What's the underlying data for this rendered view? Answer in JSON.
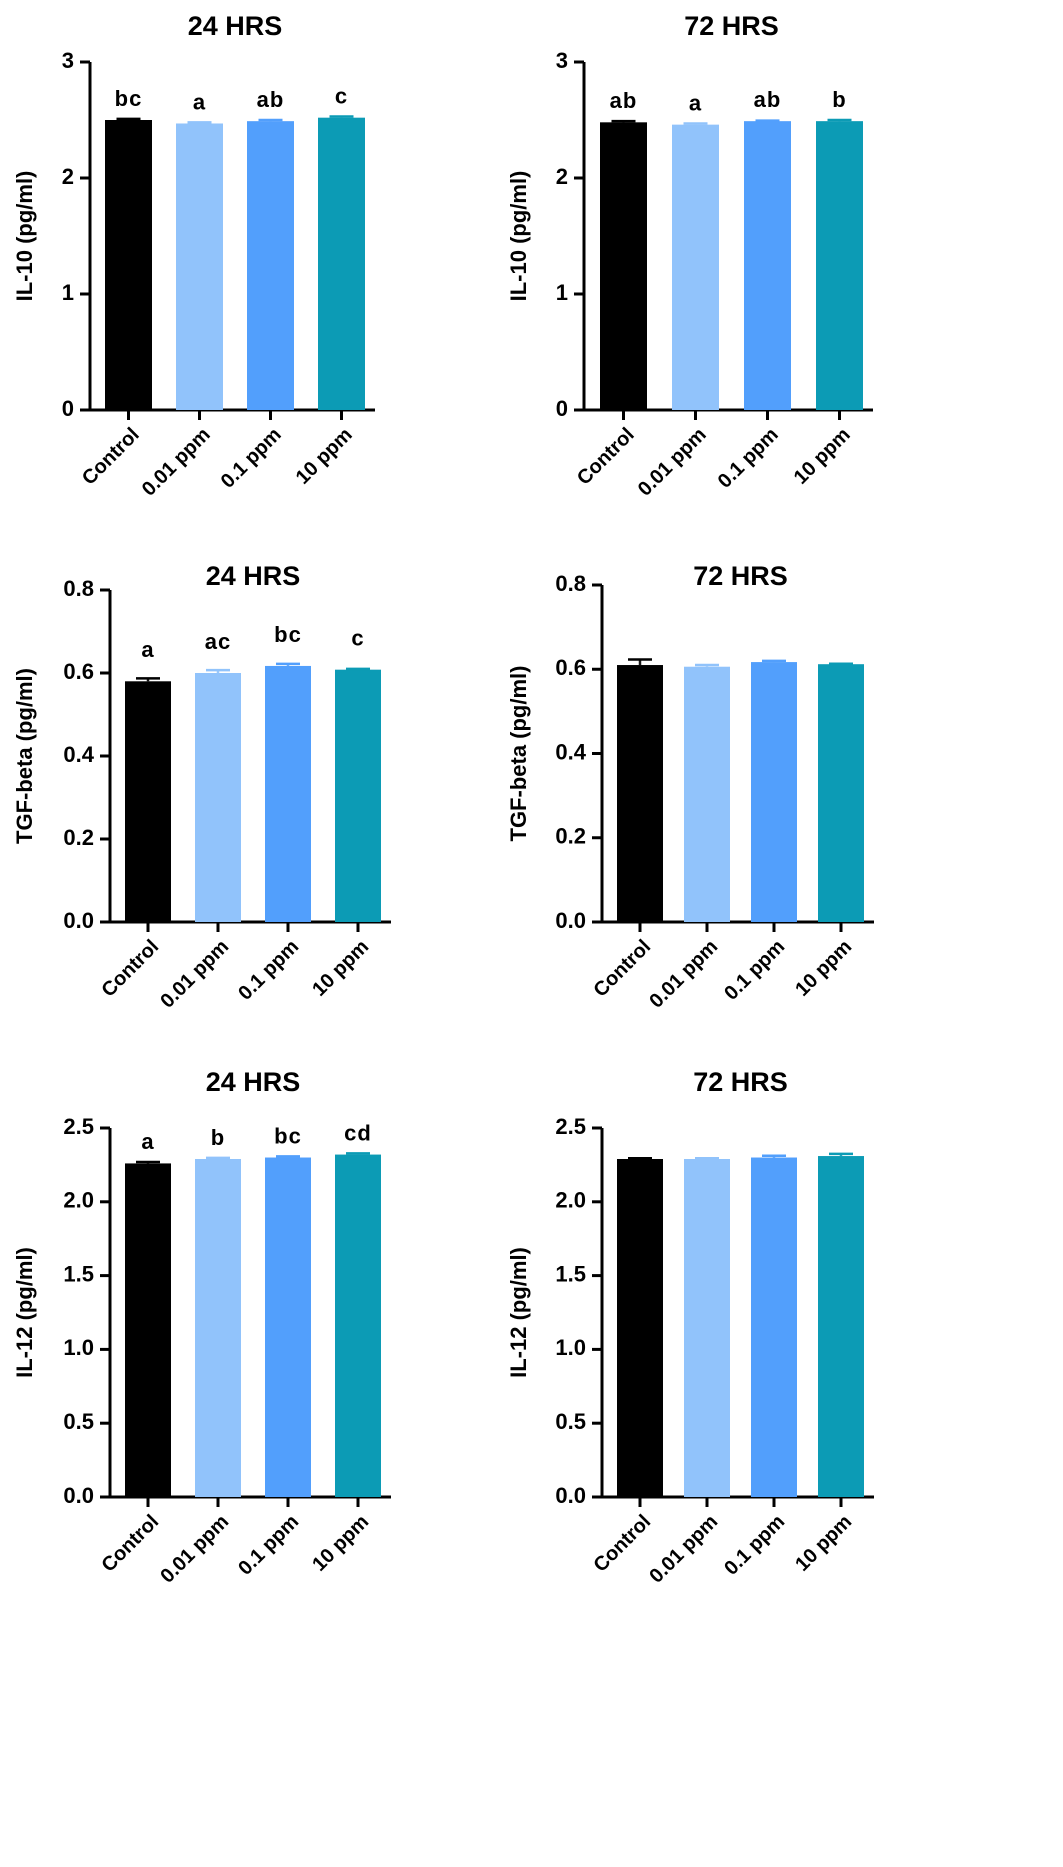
{
  "figure": {
    "colors": {
      "axis": "#000000",
      "bar_colors": [
        "#000000",
        "#91c3fb",
        "#529ffc",
        "#0c9bb5"
      ]
    }
  },
  "chart_data": [
    {
      "type": "bar",
      "title": "24 HRS",
      "xlabel": "",
      "ylabel": "IL-10 (pg/ml)",
      "categories": [
        "Control",
        "0.01 ppm",
        "0.1 ppm",
        "10 ppm"
      ],
      "values": [
        2.5,
        2.47,
        2.49,
        2.52
      ],
      "errors": [
        0.01,
        0.01,
        0.01,
        0.01
      ],
      "significance": [
        "bc",
        "a",
        "ab",
        "c"
      ],
      "ylim": [
        0,
        3
      ],
      "yticks": [
        "0",
        "1",
        "2",
        "3"
      ],
      "grid": false,
      "legend": "none"
    },
    {
      "type": "bar",
      "title": "72 HRS",
      "xlabel": "",
      "ylabel": "IL-10 (pg/ml)",
      "categories": [
        "Control",
        "0.01 ppm",
        "0.1 ppm",
        "10 ppm"
      ],
      "values": [
        2.48,
        2.46,
        2.49,
        2.49
      ],
      "errors": [
        0.01,
        0.01,
        0.005,
        0.01
      ],
      "significance": [
        "ab",
        "a",
        "ab",
        "b"
      ],
      "ylim": [
        0,
        3
      ],
      "yticks": [
        "0",
        "1",
        "2",
        "3"
      ],
      "grid": false,
      "legend": "none"
    },
    {
      "type": "bar",
      "title": "24 HRS",
      "xlabel": "",
      "ylabel": "TGF-beta (pg/ml)",
      "categories": [
        "Control",
        "0.01 ppm",
        "0.1 ppm",
        "10 ppm"
      ],
      "values": [
        0.58,
        0.6,
        0.617,
        0.608
      ],
      "errors": [
        0.007,
        0.007,
        0.005,
        0.002
      ],
      "significance": [
        "a",
        "ac",
        "bc",
        "c"
      ],
      "ylim": [
        0,
        0.8
      ],
      "yticks": [
        "0.0",
        "0.2",
        "0.4",
        "0.6",
        "0.8"
      ],
      "grid": false,
      "legend": "none"
    },
    {
      "type": "bar",
      "title": "72 HRS",
      "xlabel": "",
      "ylabel": "TGF-beta (pg/ml)",
      "categories": [
        "Control",
        "0.01 ppm",
        "0.1 ppm",
        "10 ppm"
      ],
      "values": [
        0.61,
        0.606,
        0.617,
        0.612
      ],
      "errors": [
        0.013,
        0.004,
        0.003,
        0.001
      ],
      "significance": [
        "",
        "",
        "",
        ""
      ],
      "ylim": [
        0,
        0.8
      ],
      "yticks": [
        "0.0",
        "0.2",
        "0.4",
        "0.6",
        "0.8"
      ],
      "grid": false,
      "legend": "none"
    },
    {
      "type": "bar",
      "title": "24 HRS",
      "xlabel": "",
      "ylabel": "IL-12 (pg/ml)",
      "categories": [
        "Control",
        "0.01 ppm",
        "0.1 ppm",
        "10 ppm"
      ],
      "values": [
        2.26,
        2.29,
        2.3,
        2.32
      ],
      "errors": [
        0.01,
        0.008,
        0.008,
        0.008
      ],
      "significance": [
        "a",
        "b",
        "bc",
        "cd"
      ],
      "ylim": [
        0,
        2.5
      ],
      "yticks": [
        "0.0",
        "0.5",
        "1.0",
        "1.5",
        "2.0",
        "2.5"
      ],
      "grid": false,
      "legend": "none"
    },
    {
      "type": "bar",
      "title": "72 HRS",
      "xlabel": "",
      "ylabel": "IL-12 (pg/ml)",
      "categories": [
        "Control",
        "0.01 ppm",
        "0.1 ppm",
        "10 ppm"
      ],
      "values": [
        2.29,
        2.29,
        2.3,
        2.31
      ],
      "errors": [
        0.005,
        0.005,
        0.012,
        0.015
      ],
      "significance": [
        "",
        "",
        "",
        ""
      ],
      "ylim": [
        0,
        2.5
      ],
      "yticks": [
        "0.0",
        "0.5",
        "1.0",
        "1.5",
        "2.0",
        "2.5"
      ],
      "grid": false,
      "legend": "none"
    }
  ]
}
